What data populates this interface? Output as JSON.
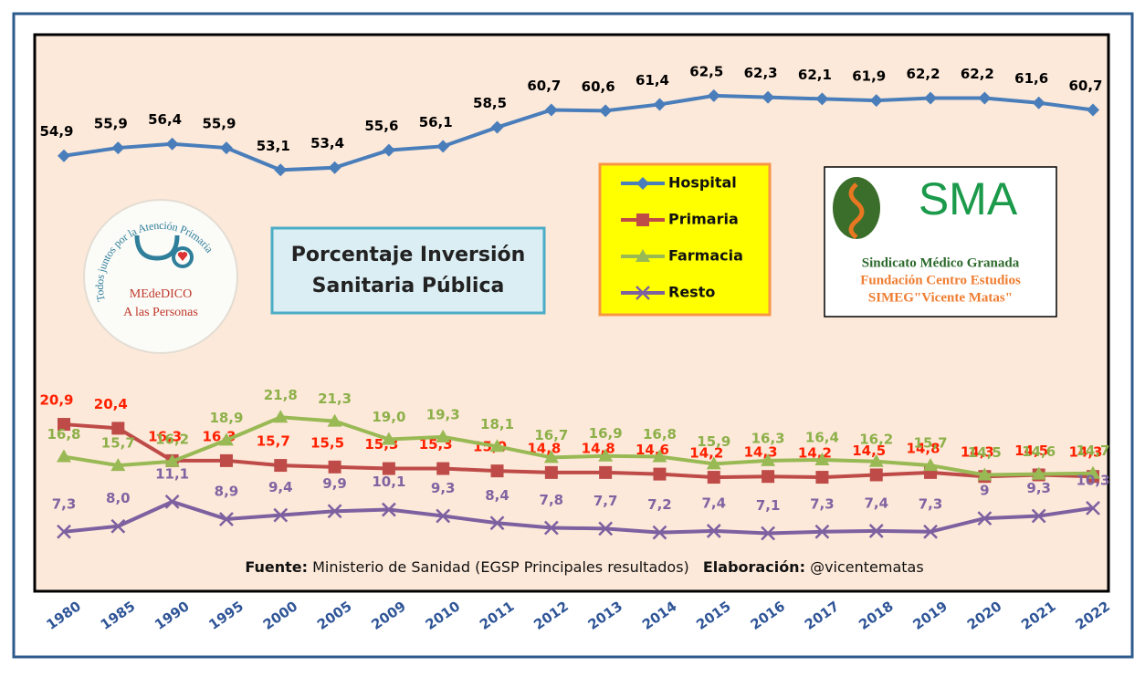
{
  "chart_data": {
    "type": "line",
    "title": "Porcentaje Inversión Sanitaria Pública",
    "categories": [
      "1980",
      "1985",
      "1990",
      "1995",
      "2000",
      "2005",
      "2009",
      "2010",
      "2011",
      "2012",
      "2013",
      "2014",
      "2015",
      "2016",
      "2017",
      "2018",
      "2019",
      "2020",
      "2021",
      "2022"
    ],
    "ylim": [
      0,
      70
    ],
    "series": [
      {
        "name": "Hospital",
        "color": "#4a7ebb",
        "label_color": "#000000",
        "marker": "diamond",
        "values": [
          54.9,
          55.9,
          56.4,
          55.9,
          53.1,
          53.4,
          55.6,
          56.1,
          58.5,
          60.7,
          60.6,
          61.4,
          62.5,
          62.3,
          62.1,
          61.9,
          62.2,
          62.2,
          61.6,
          60.7
        ],
        "value_labels": [
          "54,9",
          "55,9",
          "56,4",
          "55,9",
          "53,1",
          "53,4",
          "55,6",
          "56,1",
          "58,5",
          "60,7",
          "60,6",
          "61,4",
          "62,5",
          "62,3",
          "62,1",
          "61,9",
          "62,2",
          "62,2",
          "61,6",
          "60,7"
        ]
      },
      {
        "name": "Primaria",
        "color": "#be4b48",
        "label_color": "#ff2000",
        "marker": "square",
        "values": [
          20.9,
          20.4,
          16.3,
          16.3,
          15.7,
          15.5,
          15.3,
          15.3,
          15.0,
          14.8,
          14.8,
          14.6,
          14.2,
          14.3,
          14.2,
          14.5,
          14.8,
          14.3,
          14.5,
          14.3
        ],
        "value_labels": [
          "20,9",
          "20,4",
          "16,3",
          "16,3",
          "15,7",
          "15,5",
          "15,3",
          "15,3",
          "15,0",
          "14,8",
          "14,8",
          "14,6",
          "14,2",
          "14,3",
          "14,2",
          "14,5",
          "14,8",
          "14,3",
          "14,5",
          "14,3"
        ]
      },
      {
        "name": "Farmacia",
        "color": "#98b954",
        "label_color": "#8db04a",
        "marker": "triangle",
        "values": [
          16.8,
          15.7,
          16.2,
          18.9,
          21.8,
          21.3,
          19.0,
          19.3,
          18.1,
          16.7,
          16.9,
          16.8,
          15.9,
          16.3,
          16.4,
          16.2,
          15.7,
          14.5,
          14.6,
          14.7
        ],
        "value_labels": [
          "16,8",
          "15,7",
          "16,2",
          "18,9",
          "21,8",
          "21,3",
          "19,0",
          "19,3",
          "18,1",
          "16,7",
          "16,9",
          "16,8",
          "15,9",
          "16,3",
          "16,4",
          "16,2",
          "15,7",
          "14,5",
          "14,6",
          "14,7"
        ]
      },
      {
        "name": "Resto",
        "color": "#7d60a0",
        "label_color": "#8064a2",
        "marker": "x",
        "values": [
          7.3,
          8.0,
          11.1,
          8.9,
          9.4,
          9.9,
          10.1,
          9.3,
          8.4,
          7.8,
          7.7,
          7.2,
          7.4,
          7.1,
          7.3,
          7.4,
          7.3,
          9,
          9.3,
          10.3
        ],
        "value_labels": [
          "7,3",
          "8,0",
          "11,1",
          "8,9",
          "9,4",
          "9,9",
          "10,1",
          "9,3",
          "8,4",
          "7,8",
          "7,7",
          "7,2",
          "7,4",
          "7,1",
          "7,3",
          "7,4",
          "7,3",
          "9",
          "9,3",
          "10,3"
        ]
      }
    ],
    "source": {
      "label": "Fuente:",
      "text": "Ministerio de Sanidad (EGSP Principales resultados)",
      "credit_label": "Elaboración:",
      "credit": "@vicentematas"
    }
  },
  "logos": {
    "left": {
      "ring": "Todos juntos por la Atención Primaria",
      "line1": "MEdeDICO",
      "line2": "A las Personas"
    },
    "right": {
      "mark": "SMA",
      "line1": "Sindicato Médico Granada",
      "line2": "Fundación Centro Estudios",
      "line3": "SIMEG\"Vicente Matas\""
    }
  }
}
